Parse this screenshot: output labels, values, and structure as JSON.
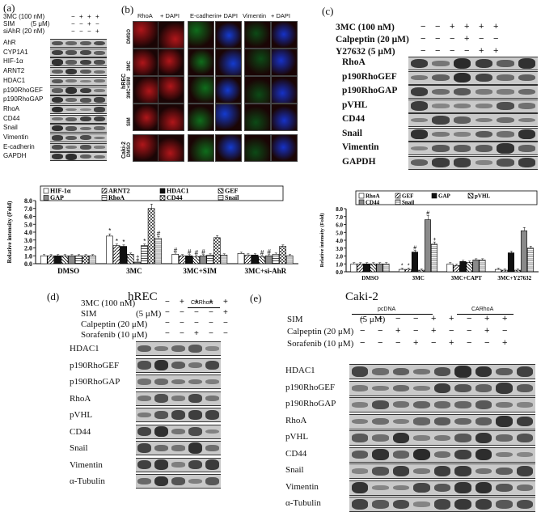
{
  "panel_a": {
    "label": "(a)",
    "treatments": [
      {
        "name": "3MC (100 nM)",
        "signs": [
          "−",
          "+",
          "+",
          "+"
        ]
      },
      {
        "name": "SIM",
        "unit": "(5 μM)",
        "signs": [
          "−",
          "−",
          "+",
          "−"
        ]
      },
      {
        "name": "siAhR (20 nM)",
        "signs": [
          "−",
          "−",
          "−",
          "+"
        ]
      }
    ],
    "blots": [
      "AhR",
      "CYP1A1",
      "HIF-1α",
      "ARNT2",
      "HDAC1",
      "p190RhoGEF",
      "p190RhoGAP",
      "RhoA",
      "CD44",
      "Snail",
      "Vimentin",
      "E-cadherin",
      "GAPDH"
    ]
  },
  "panel_b": {
    "label": "(b)",
    "headers": [
      "RhoA",
      "+ DAPI",
      "E-cadherin",
      "+ DAPI",
      "Vimentin",
      "+ DAPI"
    ],
    "group1": "hREC",
    "rows": [
      "DMSO",
      "3MC",
      "3MC+SIM",
      "SIM"
    ],
    "group2": "Caki-2",
    "row_caki": "DMSO"
  },
  "panel_c": {
    "label": "(c)",
    "treatments": [
      {
        "name": "3MC (100 nM)",
        "signs": [
          "−",
          "−",
          "+",
          "+",
          "+",
          "+"
        ]
      },
      {
        "name": "Calpeptin (20 μM)",
        "signs": [
          "−",
          "−",
          "−",
          "+",
          "−",
          "−"
        ]
      },
      {
        "name": "Y27632 (5 μM)",
        "signs": [
          "−",
          "−",
          "−",
          "−",
          "+",
          "+"
        ]
      }
    ],
    "blots": [
      "RhoA",
      "p190RhoGEF",
      "p190RhoGAP",
      "pVHL",
      "CD44",
      "Snail",
      "Vimentin",
      "GAPDH"
    ]
  },
  "panel_d": {
    "label": "(d)",
    "title": "hREC",
    "car_label": "CARhoA",
    "treatments": [
      {
        "name": "3MC (100 nM)",
        "signs": [
          "−",
          "+",
          "+",
          "+",
          "+"
        ]
      },
      {
        "name": "SIM",
        "unit": "(5 μM)",
        "signs": [
          "−",
          "−",
          "−",
          "−",
          "+"
        ]
      },
      {
        "name": "Calpeptin (20 μM)",
        "signs": [
          "−",
          "−",
          "−",
          "−",
          "−"
        ]
      },
      {
        "name": "Sorafenib (10 μM)",
        "signs": [
          "−",
          "−",
          "+",
          "−",
          "−"
        ]
      }
    ],
    "blots": [
      "HDAC1",
      "p190RhoGEF",
      "p190RhoGAP",
      "RhoA",
      "pVHL",
      "CD44",
      "Snail",
      "Vimentin",
      "α-Tubulin"
    ]
  },
  "panel_e": {
    "label": "(e)",
    "title": "Caki-2",
    "pc_label": "pcDNA",
    "car_label": "CARhoA",
    "treatments": [
      {
        "name": "SIM",
        "unit": "(5 μM)",
        "signs": [
          "−",
          "+",
          "−",
          "−",
          "+",
          "+",
          "−",
          "+",
          "+"
        ]
      },
      {
        "name": "Calpeptin (20 μM)",
        "signs": [
          "−",
          "−",
          "+",
          "−",
          "+",
          "−",
          "−",
          "+",
          "−"
        ]
      },
      {
        "name": "Sorafenib (10 μM)",
        "signs": [
          "−",
          "−",
          "−",
          "+",
          "−",
          "+",
          "−",
          "−",
          "+"
        ]
      }
    ],
    "blots": [
      "HDAC1",
      "p190RhoGEF",
      "p190RhoGAP",
      "RhoA",
      "pVHL",
      "CD44",
      "Snail",
      "Vimentin",
      "α-Tubulin"
    ]
  },
  "chart_data": [
    {
      "type": "bar",
      "ylabel": "Relative intensity (Fold)",
      "ylim": [
        0,
        8
      ],
      "yticks": [
        "0.0",
        "1.0",
        "2.0",
        "3.0",
        "4.0",
        "5.0",
        "6.0",
        "7.0",
        "8.0"
      ],
      "categories": [
        "DMSO",
        "3MC",
        "3MC+SIM",
        "3MC+si-AhR"
      ],
      "legend_position": "top",
      "series": [
        {
          "name": "HIF-1α",
          "pattern": "white",
          "values": [
            1.0,
            3.5,
            1.2,
            1.3
          ]
        },
        {
          "name": "ARNT2",
          "pattern": "diag",
          "values": [
            1.0,
            2.3,
            1.0,
            1.1
          ]
        },
        {
          "name": "HDAC1",
          "pattern": "black",
          "values": [
            1.0,
            2.2,
            1.0,
            1.1
          ]
        },
        {
          "name": "GEF",
          "pattern": "diag2",
          "values": [
            1.0,
            1.2,
            0.9,
            0.9
          ]
        },
        {
          "name": "GAP",
          "pattern": "gray",
          "values": [
            1.0,
            0.2,
            1.0,
            1.0
          ]
        },
        {
          "name": "RhoA",
          "pattern": "hbar",
          "values": [
            1.0,
            2.3,
            1.1,
            1.2
          ]
        },
        {
          "name": "CD44",
          "pattern": "check",
          "values": [
            1.0,
            7.0,
            3.3,
            2.2
          ]
        },
        {
          "name": "Snail",
          "pattern": "hline",
          "values": [
            1.0,
            3.2,
            1.1,
            1.0
          ]
        }
      ],
      "annotations": [
        "*",
        "*",
        "*",
        "‡",
        "*",
        "#",
        "#",
        "#",
        "#",
        "#",
        "#",
        "#",
        "#"
      ]
    },
    {
      "type": "bar",
      "ylabel": "Relative intensity (Fold)",
      "ylim": [
        0,
        8
      ],
      "yticks": [
        "0.0",
        "1.0",
        "2.0",
        "3.0",
        "4.0",
        "5.0",
        "6.0",
        "7.0",
        "8.0"
      ],
      "categories": [
        "DMSO",
        "3MC",
        "3MC+CAPT",
        "3MC+Y27632"
      ],
      "legend_position": "top",
      "series": [
        {
          "name": "RhoA",
          "pattern": "white",
          "values": [
            1.0,
            0.3,
            1.0,
            0.3
          ]
        },
        {
          "name": "GEF",
          "pattern": "diag",
          "values": [
            1.0,
            0.3,
            0.8,
            0.2
          ]
        },
        {
          "name": "GAP",
          "pattern": "black",
          "values": [
            1.0,
            2.5,
            1.3,
            2.4
          ]
        },
        {
          "name": "pVHL",
          "pattern": "diag2",
          "values": [
            1.0,
            0.2,
            1.2,
            0.2
          ]
        },
        {
          "name": "CD44",
          "pattern": "gray",
          "values": [
            1.0,
            6.6,
            1.5,
            5.2
          ]
        },
        {
          "name": "Snail",
          "pattern": "hline",
          "values": [
            1.0,
            3.5,
            1.5,
            3.0
          ]
        }
      ],
      "annotations": [
        "*",
        "*",
        "#",
        "#",
        "+"
      ]
    }
  ]
}
